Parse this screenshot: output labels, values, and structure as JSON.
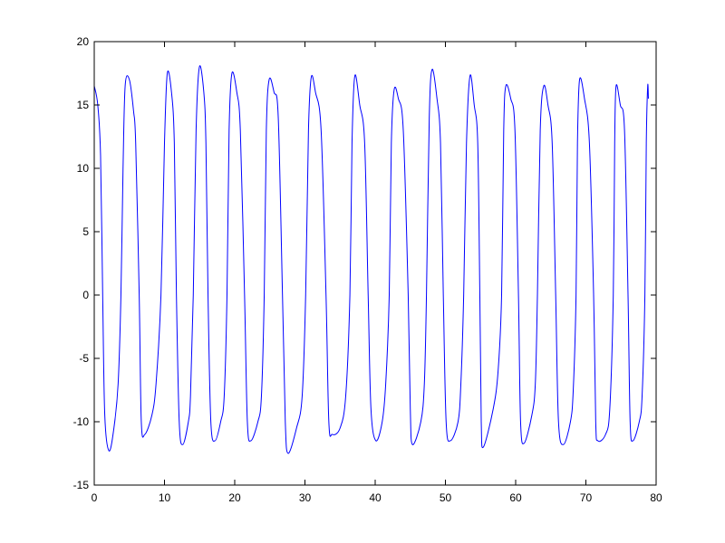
{
  "chart_data": {
    "type": "line",
    "title": "",
    "xlabel": "",
    "ylabel": "",
    "xlim": [
      0,
      80
    ],
    "ylim": [
      -15,
      20
    ],
    "xticks": [
      "0",
      "10",
      "20",
      "30",
      "40",
      "50",
      "60",
      "70",
      "80"
    ],
    "yticks": [
      "-15",
      "-10",
      "-5",
      "0",
      "5",
      "10",
      "15",
      "20"
    ],
    "grid": false,
    "legend": "none",
    "line_color": "#0000ff",
    "series": [
      {
        "points": [
          [
            0,
            16.5
          ],
          [
            0.5,
            15
          ],
          [
            0.9,
            11
          ],
          [
            1.2,
            0
          ],
          [
            1.5,
            -9.5
          ],
          [
            2.1,
            -12.3
          ],
          [
            2.8,
            -10.5
          ],
          [
            3.4,
            -7
          ],
          [
            3.8,
            0
          ],
          [
            4.1,
            10
          ],
          [
            4.4,
            16.5
          ],
          [
            5.0,
            17
          ],
          [
            5.6,
            14.5
          ],
          [
            5.9,
            12
          ],
          [
            6.4,
            0
          ],
          [
            6.7,
            -10
          ],
          [
            7.2,
            -11
          ],
          [
            8.2,
            -9.5
          ],
          [
            8.8,
            -7
          ],
          [
            9.5,
            0
          ],
          [
            10.0,
            12
          ],
          [
            10.4,
            17.5
          ],
          [
            11.0,
            16
          ],
          [
            11.4,
            12
          ],
          [
            11.7,
            0
          ],
          [
            12.1,
            -10
          ],
          [
            12.6,
            -11.8
          ],
          [
            13.4,
            -10
          ],
          [
            13.7,
            -8
          ],
          [
            14.1,
            0
          ],
          [
            14.5,
            13
          ],
          [
            14.97,
            18
          ],
          [
            15.6,
            16
          ],
          [
            15.9,
            12
          ],
          [
            16.2,
            0
          ],
          [
            16.6,
            -10
          ],
          [
            17.2,
            -11.5
          ],
          [
            18.0,
            -10
          ],
          [
            18.5,
            -8
          ],
          [
            18.9,
            0
          ],
          [
            19.2,
            13
          ],
          [
            19.6,
            17.5
          ],
          [
            20.3,
            16
          ],
          [
            20.8,
            13
          ],
          [
            21.4,
            0
          ],
          [
            21.8,
            -10
          ],
          [
            22.3,
            -11.5
          ],
          [
            23.3,
            -10
          ],
          [
            23.8,
            -8
          ],
          [
            24.2,
            0
          ],
          [
            24.5,
            13
          ],
          [
            24.9,
            17
          ],
          [
            25.6,
            16
          ],
          [
            26.2,
            14
          ],
          [
            26.8,
            0
          ],
          [
            27.2,
            -10
          ],
          [
            27.6,
            -12.5
          ],
          [
            28.8,
            -10.5
          ],
          [
            29.6,
            -8
          ],
          [
            30.1,
            0
          ],
          [
            30.5,
            13
          ],
          [
            30.9,
            17.2
          ],
          [
            31.5,
            16
          ],
          [
            32.3,
            13
          ],
          [
            33.0,
            0
          ],
          [
            33.4,
            -10
          ],
          [
            33.9,
            -11
          ],
          [
            35.0,
            -10.5
          ],
          [
            35.8,
            -8
          ],
          [
            36.4,
            0
          ],
          [
            36.7,
            12
          ],
          [
            37.1,
            17.3
          ],
          [
            37.8,
            15
          ],
          [
            38.5,
            12
          ],
          [
            39.0,
            0
          ],
          [
            39.4,
            -9
          ],
          [
            40.1,
            -11.5
          ],
          [
            41.0,
            -10
          ],
          [
            41.5,
            -7
          ],
          [
            42.0,
            0
          ],
          [
            42.3,
            12
          ],
          [
            42.7,
            16.2
          ],
          [
            43.3,
            15.5
          ],
          [
            44.0,
            13
          ],
          [
            44.7,
            0
          ],
          [
            45.0,
            -9
          ],
          [
            45.3,
            -11.8
          ],
          [
            46.5,
            -10
          ],
          [
            47.0,
            -7
          ],
          [
            47.3,
            0
          ],
          [
            47.7,
            14
          ],
          [
            48.1,
            17.8
          ],
          [
            48.8,
            15.5
          ],
          [
            49.3,
            12
          ],
          [
            49.7,
            0
          ],
          [
            50.1,
            -10
          ],
          [
            50.7,
            -11.5
          ],
          [
            51.8,
            -10
          ],
          [
            52.2,
            -7
          ],
          [
            52.6,
            0
          ],
          [
            53.0,
            12
          ],
          [
            53.5,
            17.3
          ],
          [
            54.1,
            15
          ],
          [
            54.6,
            12
          ],
          [
            54.9,
            0
          ],
          [
            55.1,
            -10
          ],
          [
            55.4,
            -12
          ],
          [
            56.8,
            -9
          ],
          [
            57.5,
            -6
          ],
          [
            58.0,
            0
          ],
          [
            58.3,
            13
          ],
          [
            58.6,
            16.5
          ],
          [
            59.3,
            15.5
          ],
          [
            59.9,
            13
          ],
          [
            60.4,
            0
          ],
          [
            60.7,
            -10
          ],
          [
            61.2,
            -11.7
          ],
          [
            62.3,
            -9.5
          ],
          [
            62.8,
            -7
          ],
          [
            63.1,
            0
          ],
          [
            63.5,
            13
          ],
          [
            64.0,
            16.5
          ],
          [
            64.6,
            15
          ],
          [
            65.2,
            12
          ],
          [
            65.7,
            0
          ],
          [
            66.1,
            -10
          ],
          [
            66.8,
            -11.8
          ],
          [
            67.8,
            -10
          ],
          [
            68.2,
            -7.5
          ],
          [
            68.6,
            0
          ],
          [
            68.8,
            12
          ],
          [
            69.1,
            17
          ],
          [
            69.8,
            15.5
          ],
          [
            70.5,
            12
          ],
          [
            71.1,
            0
          ],
          [
            71.4,
            -10
          ],
          [
            71.7,
            -11.5
          ],
          [
            72.8,
            -11
          ],
          [
            73.4,
            -9
          ],
          [
            73.9,
            0
          ],
          [
            74.1,
            12
          ],
          [
            74.3,
            16.5
          ],
          [
            74.9,
            15
          ],
          [
            75.5,
            13
          ],
          [
            76.0,
            0
          ],
          [
            76.3,
            -10
          ],
          [
            76.7,
            -11.5
          ],
          [
            77.6,
            -10
          ],
          [
            78.0,
            -8
          ],
          [
            78.4,
            0
          ],
          [
            78.6,
            12
          ],
          [
            78.8,
            16.5
          ],
          [
            78.9,
            15.5
          ]
        ]
      }
    ]
  }
}
